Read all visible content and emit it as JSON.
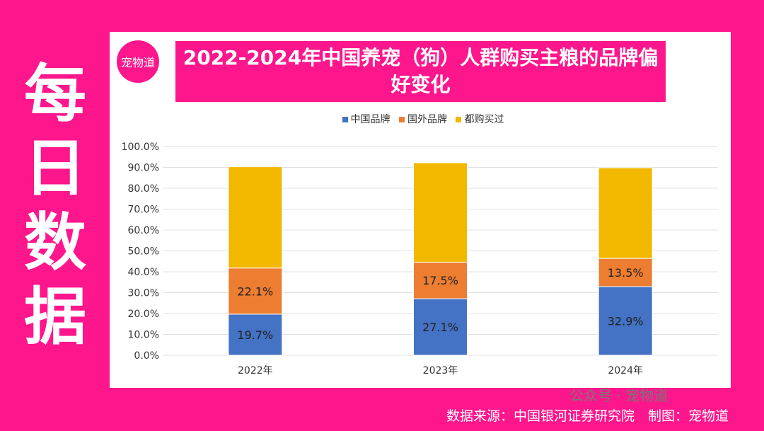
{
  "side_title": [
    "每",
    "日",
    "数",
    "据"
  ],
  "logo_text": "宠物道",
  "chart_data": {
    "type": "bar",
    "stacked": true,
    "title": "2022-2024年中国养宠（狗）人群购买主粮的品牌偏好变化",
    "categories": [
      "2022年",
      "2023年",
      "2024年"
    ],
    "series": [
      {
        "name": "中国品牌",
        "color": "#4472c4",
        "values": [
          19.7,
          27.1,
          32.9
        ],
        "labels": [
          "19.7%",
          "27.1%",
          "32.9%"
        ]
      },
      {
        "name": "国外品牌",
        "color": "#ed7d31",
        "values": [
          22.1,
          17.5,
          13.5
        ],
        "labels": [
          "22.1%",
          "17.5%",
          "13.5%"
        ]
      },
      {
        "name": "都购买过",
        "color": "#f2b800",
        "values": [
          48.5,
          47.6,
          43.4
        ]
      }
    ],
    "ylim": [
      0,
      100
    ],
    "yticks": [
      "0.0%",
      "10.0%",
      "20.0%",
      "30.0%",
      "40.0%",
      "50.0%",
      "60.0%",
      "70.0%",
      "80.0%",
      "90.0%",
      "100.0%"
    ],
    "grid": true,
    "legend": "top"
  },
  "source": "数据来源：中国银河证券研究院　制图：宠物道",
  "watermark": "公众号 · 宠物道"
}
